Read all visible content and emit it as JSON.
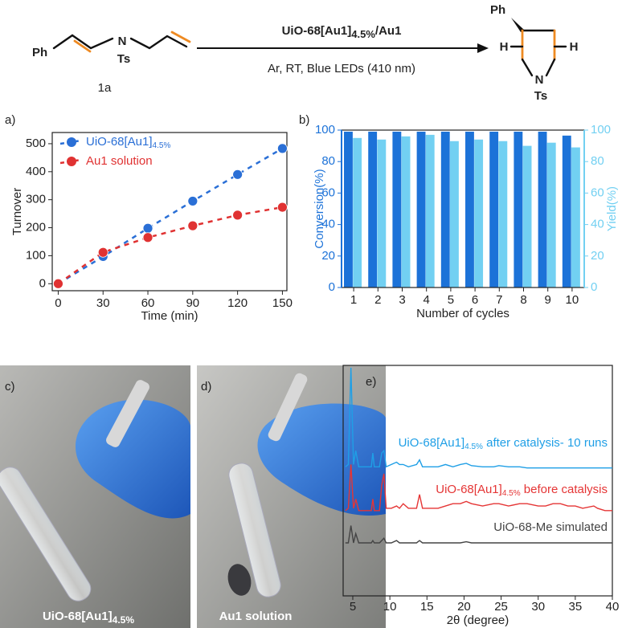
{
  "scheme": {
    "reactant": {
      "ph": "Ph",
      "n": "N",
      "ts": "Ts"
    },
    "label": "1a",
    "reagent": "UiO-68[Au1]",
    "reagent_sub": "4.5%",
    "reagent_tail": "/Au1",
    "conditions": "Ar, RT, Blue LEDs (410 nm)",
    "product": {
      "ph": "Ph",
      "h1": "H",
      "h2": "H",
      "n": "N",
      "ts": "Ts"
    }
  },
  "panel_labels": [
    "a)",
    "b)",
    "c)",
    "d)",
    "e)"
  ],
  "photos": [
    {
      "caption": "UiO-68[Au1]",
      "caption_sub": "4.5%"
    },
    {
      "caption": "Au1 solution"
    }
  ],
  "chart_data": [
    {
      "type": "scatter",
      "xlabel": "Time (min)",
      "ylabel": "Turnover",
      "x": [
        0,
        30,
        60,
        90,
        120,
        150
      ],
      "series": [
        {
          "name": "UiO-68[Au1]",
          "name_sub": "4.5%",
          "color": "#2a6fd6",
          "values": [
            0,
            97,
            198,
            295,
            390,
            483
          ]
        },
        {
          "name": "Au1 solution",
          "color": "#e03232",
          "values": [
            0,
            112,
            165,
            207,
            245,
            273
          ]
        }
      ],
      "xlim": [
        -4,
        153
      ],
      "ylim": [
        -25,
        540
      ],
      "xticks": [
        0,
        30,
        60,
        90,
        120,
        150
      ],
      "yticks": [
        0,
        100,
        200,
        300,
        400,
        500
      ],
      "legend": "upper left"
    },
    {
      "type": "bar",
      "xlabel": "Number of cycles",
      "categories": [
        "1",
        "2",
        "3",
        "4",
        "5",
        "6",
        "7",
        "8",
        "9",
        "10"
      ],
      "series": [
        {
          "name": "Conversion(%)",
          "color": "#1c72d8",
          "values": [
            99,
            99,
            99,
            99,
            99,
            99,
            99,
            99,
            99,
            96.5
          ]
        },
        {
          "name": "Yield(%)",
          "color": "#72d0f2",
          "axis": "y2",
          "values": [
            95,
            94,
            96,
            97,
            93,
            94,
            93,
            90,
            92,
            89
          ]
        }
      ],
      "ylim": [
        0,
        100
      ],
      "yticks": [
        0,
        20,
        40,
        60,
        80,
        100
      ],
      "y2lim": [
        0,
        100
      ],
      "y2ticks": [
        0,
        20,
        40,
        60,
        80,
        100
      ]
    },
    {
      "type": "line",
      "xlabel": "2θ (degree)",
      "x": [
        4,
        4.4,
        4.75,
        5.1,
        5.4,
        5.8,
        6.5,
        7.5,
        7.7,
        7.9,
        8.6,
        8.9,
        9.2,
        9.5,
        10.2,
        10.9,
        11.3,
        11.8,
        12.5,
        13.6,
        14.0,
        14.4,
        15.5,
        16.5,
        17.5,
        18.5,
        19.5,
        20.3,
        21,
        22.5,
        24,
        24.7,
        26,
        27.5,
        28.5,
        30,
        31,
        32,
        33,
        34,
        35,
        36,
        37.5,
        38,
        39,
        40
      ],
      "series": [
        {
          "name": "UiO-68[Au1]",
          "name_sub": "4.5%",
          "name_tail": " after catalysis- 10 runs",
          "color": "#1f9fe6",
          "values": [
            56,
            57,
            99,
            57,
            63,
            56,
            56,
            56,
            62,
            56,
            56,
            62,
            63,
            56,
            57,
            58,
            57,
            57,
            56,
            57,
            59,
            56,
            56,
            56,
            57,
            56,
            57,
            57.5,
            56.5,
            56,
            56,
            56.5,
            56,
            56,
            55.5,
            55.5,
            55.5,
            55.5,
            55.5,
            55.5,
            55.5,
            55.5,
            55.5,
            55.5,
            55.5,
            55.5
          ]
        },
        {
          "name": "UiO-68[Au1]",
          "name_sub": "4.5%",
          "name_tail": " before catalysis",
          "color": "#e53535",
          "values": [
            37,
            38,
            57,
            38,
            42,
            37,
            37,
            37,
            42,
            37,
            37,
            48,
            53,
            38,
            38,
            39,
            38,
            40,
            38,
            38,
            44,
            38,
            38,
            38,
            39,
            40,
            40,
            41,
            40,
            39,
            40,
            40,
            39,
            40,
            40,
            39,
            39,
            40,
            40,
            39,
            39,
            38,
            39,
            38,
            37,
            37
          ]
        },
        {
          "name": "UiO-68-Me simulated",
          "color": "#444444",
          "values": [
            23,
            23,
            30.5,
            23,
            27,
            23,
            23,
            23,
            24,
            23,
            23,
            24,
            25,
            23,
            23,
            24,
            23,
            23,
            23,
            23,
            24,
            23,
            23,
            23,
            23,
            23,
            23,
            23.5,
            23,
            23,
            23,
            23,
            23,
            23,
            23,
            23,
            23,
            23,
            23,
            23,
            23,
            23,
            23,
            23,
            23,
            23
          ]
        }
      ],
      "xlim": [
        3.7,
        40
      ],
      "ylim": [
        0,
        100
      ],
      "xticks": [
        5,
        10,
        15,
        20,
        25,
        30,
        35,
        40
      ]
    }
  ]
}
